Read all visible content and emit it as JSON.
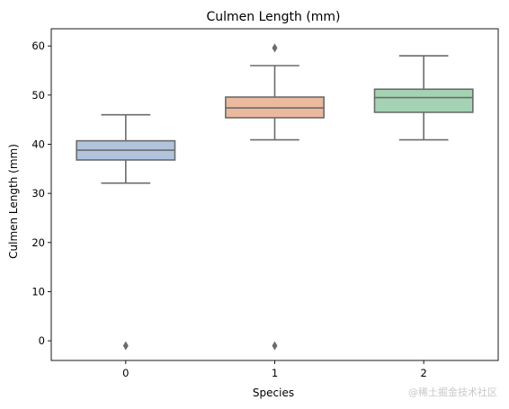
{
  "chart_data": {
    "type": "box",
    "title": "Culmen Length (mm)",
    "xlabel": "Species",
    "ylabel": "Culmen Length (mm)",
    "categories": [
      "0",
      "1",
      "2"
    ],
    "ylim": [
      -4,
      63.5
    ],
    "yticks": [
      0,
      10,
      20,
      30,
      40,
      50,
      60
    ],
    "grid": false,
    "boxes": [
      {
        "category": "0",
        "whisker_low": 32.1,
        "q1": 36.8,
        "median": 38.8,
        "q3": 40.7,
        "whisker_high": 46.0,
        "outliers": [
          -1.0
        ],
        "color": "#b0c4de"
      },
      {
        "category": "1",
        "whisker_low": 40.9,
        "q1": 45.4,
        "median": 47.4,
        "q3": 49.6,
        "whisker_high": 56.0,
        "outliers": [
          59.6,
          -1.0
        ],
        "color": "#ebb99d"
      },
      {
        "category": "2",
        "whisker_low": 40.9,
        "q1": 46.5,
        "median": 49.5,
        "q3": 51.2,
        "whisker_high": 58.0,
        "outliers": [],
        "color": "#a4d3b4"
      }
    ]
  },
  "watermark": "@稀土掘金技术社区"
}
